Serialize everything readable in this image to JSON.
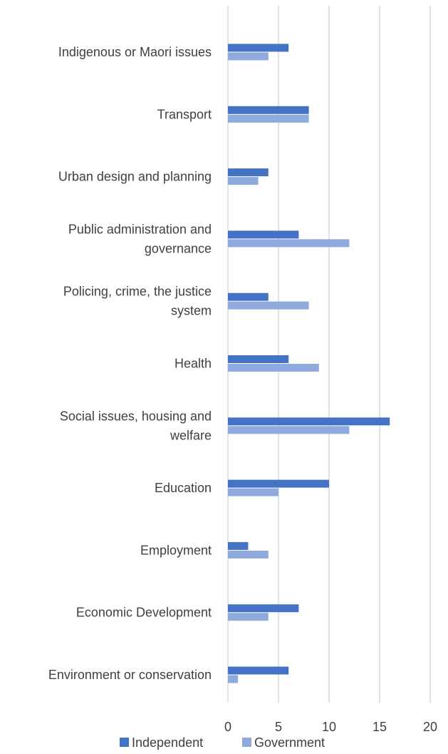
{
  "chart_data": {
    "type": "bar",
    "orientation": "horizontal",
    "categories": [
      "Indigenous or Maori issues",
      "Transport",
      "Urban design and planning",
      "Public administration and governance",
      "Policing, crime, the justice system",
      "Health",
      "Social issues, housing and welfare",
      "Education",
      "Employment",
      "Economic Development",
      "Environment or conservation"
    ],
    "category_lines": [
      [
        "Indigenous or Maori issues"
      ],
      [
        "Transport"
      ],
      [
        "Urban design and planning"
      ],
      [
        "Public administration and",
        "governance"
      ],
      [
        "Policing, crime, the justice",
        "system"
      ],
      [
        "Health"
      ],
      [
        "Social issues, housing and",
        "welfare"
      ],
      [
        "Education"
      ],
      [
        "Employment"
      ],
      [
        "Economic Development"
      ],
      [
        "Environment or conservation"
      ]
    ],
    "series": [
      {
        "name": "Independent",
        "color": "#4472c4",
        "values": [
          6,
          8,
          4,
          7,
          4,
          6,
          16,
          10,
          2,
          7,
          6
        ]
      },
      {
        "name": "Government",
        "color": "#8faadc",
        "values": [
          4,
          8,
          3,
          12,
          8,
          9,
          12,
          5,
          4,
          4,
          1
        ]
      }
    ],
    "xlim": [
      0,
      20
    ],
    "xticks": [
      0,
      5,
      10,
      15,
      20
    ],
    "xtick_labels": [
      "0",
      "5",
      "10",
      "15",
      "20"
    ],
    "grid": true,
    "legend_position": "bottom",
    "title": "",
    "xlabel": "",
    "ylabel": ""
  }
}
